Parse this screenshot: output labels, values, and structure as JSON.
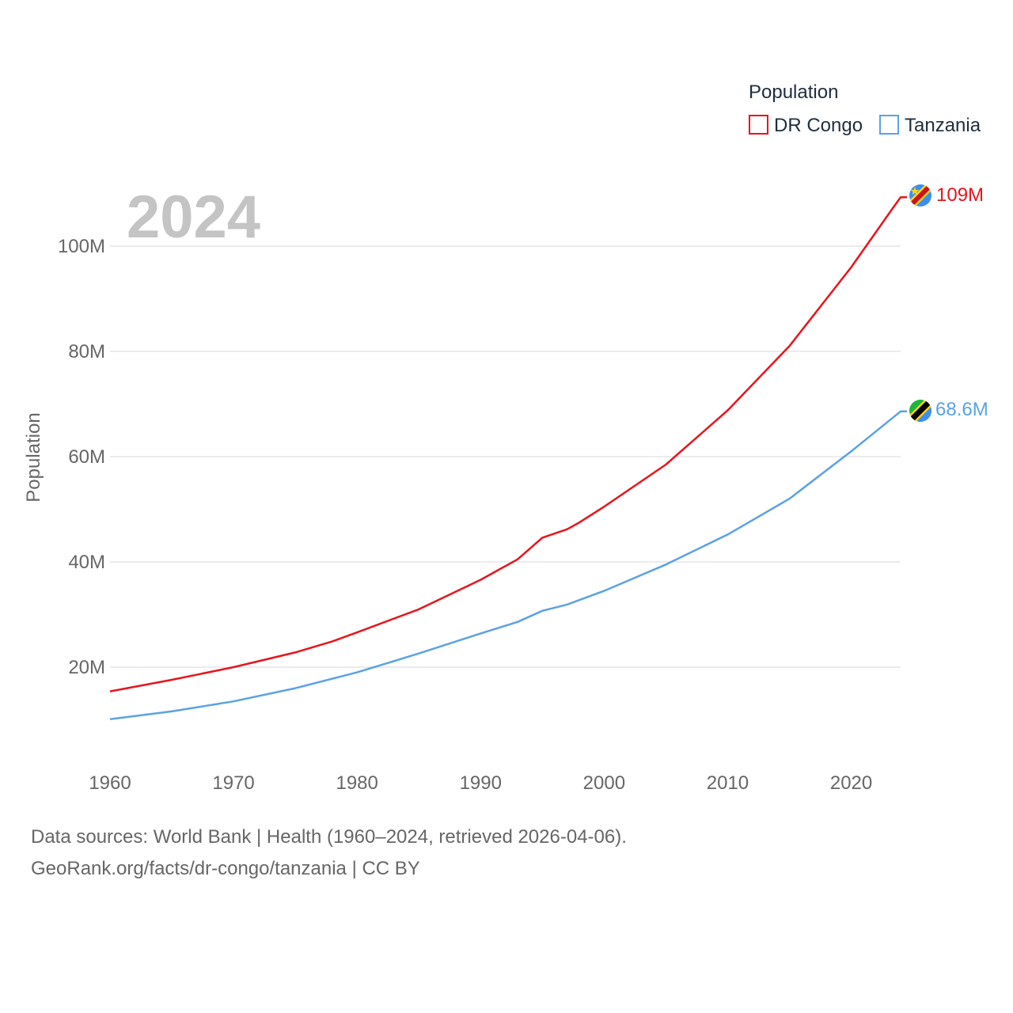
{
  "chart_data": {
    "type": "line",
    "year_label": "2024",
    "legend_title": "Population",
    "ylabel": "Population",
    "xlabel": "",
    "x_ticks": [
      "1960",
      "1970",
      "1980",
      "1990",
      "2000",
      "2010",
      "2020"
    ],
    "y_ticks": [
      {
        "value": 20,
        "label": "20M"
      },
      {
        "value": 40,
        "label": "40M"
      },
      {
        "value": 60,
        "label": "60M"
      },
      {
        "value": 80,
        "label": "80M"
      },
      {
        "value": 100,
        "label": "100M"
      }
    ],
    "xlim": [
      1960,
      2024
    ],
    "ylim": [
      0,
      115
    ],
    "grid": true,
    "legend_position": "top-right",
    "series": [
      {
        "name": "DR Congo",
        "color": "#e8141c",
        "end_label": "109M",
        "flag_icon": "dr-congo-flag-icon",
        "points": [
          [
            1960,
            15.4
          ],
          [
            1965,
            17.6
          ],
          [
            1970,
            20.0
          ],
          [
            1975,
            22.8
          ],
          [
            1978,
            24.9
          ],
          [
            1980,
            26.6
          ],
          [
            1985,
            31.0
          ],
          [
            1990,
            36.6
          ],
          [
            1993,
            40.5
          ],
          [
            1995,
            44.6
          ],
          [
            1997,
            46.2
          ],
          [
            1998,
            47.5
          ],
          [
            2000,
            50.5
          ],
          [
            2005,
            58.5
          ],
          [
            2010,
            68.8
          ],
          [
            2015,
            81.0
          ],
          [
            2020,
            96.0
          ],
          [
            2023,
            106.0
          ],
          [
            2024,
            109.3
          ]
        ]
      },
      {
        "name": "Tanzania",
        "color": "#5aa2e6",
        "end_label": "68.6M",
        "flag_icon": "tanzania-flag-icon",
        "points": [
          [
            1960,
            10.1
          ],
          [
            1965,
            11.6
          ],
          [
            1970,
            13.5
          ],
          [
            1975,
            16.0
          ],
          [
            1980,
            19.0
          ],
          [
            1985,
            22.6
          ],
          [
            1990,
            26.4
          ],
          [
            1993,
            28.6
          ],
          [
            1995,
            30.7
          ],
          [
            1997,
            31.9
          ],
          [
            2000,
            34.5
          ],
          [
            2005,
            39.5
          ],
          [
            2010,
            45.2
          ],
          [
            2015,
            52.0
          ],
          [
            2020,
            61.0
          ],
          [
            2024,
            68.6
          ]
        ]
      }
    ]
  },
  "footer": {
    "sources": "Data sources: World Bank | Health (1960–2024, retrieved 2026-04-06).",
    "credit": "GeoRank.org/facts/dr-congo/tanzania | CC BY"
  }
}
